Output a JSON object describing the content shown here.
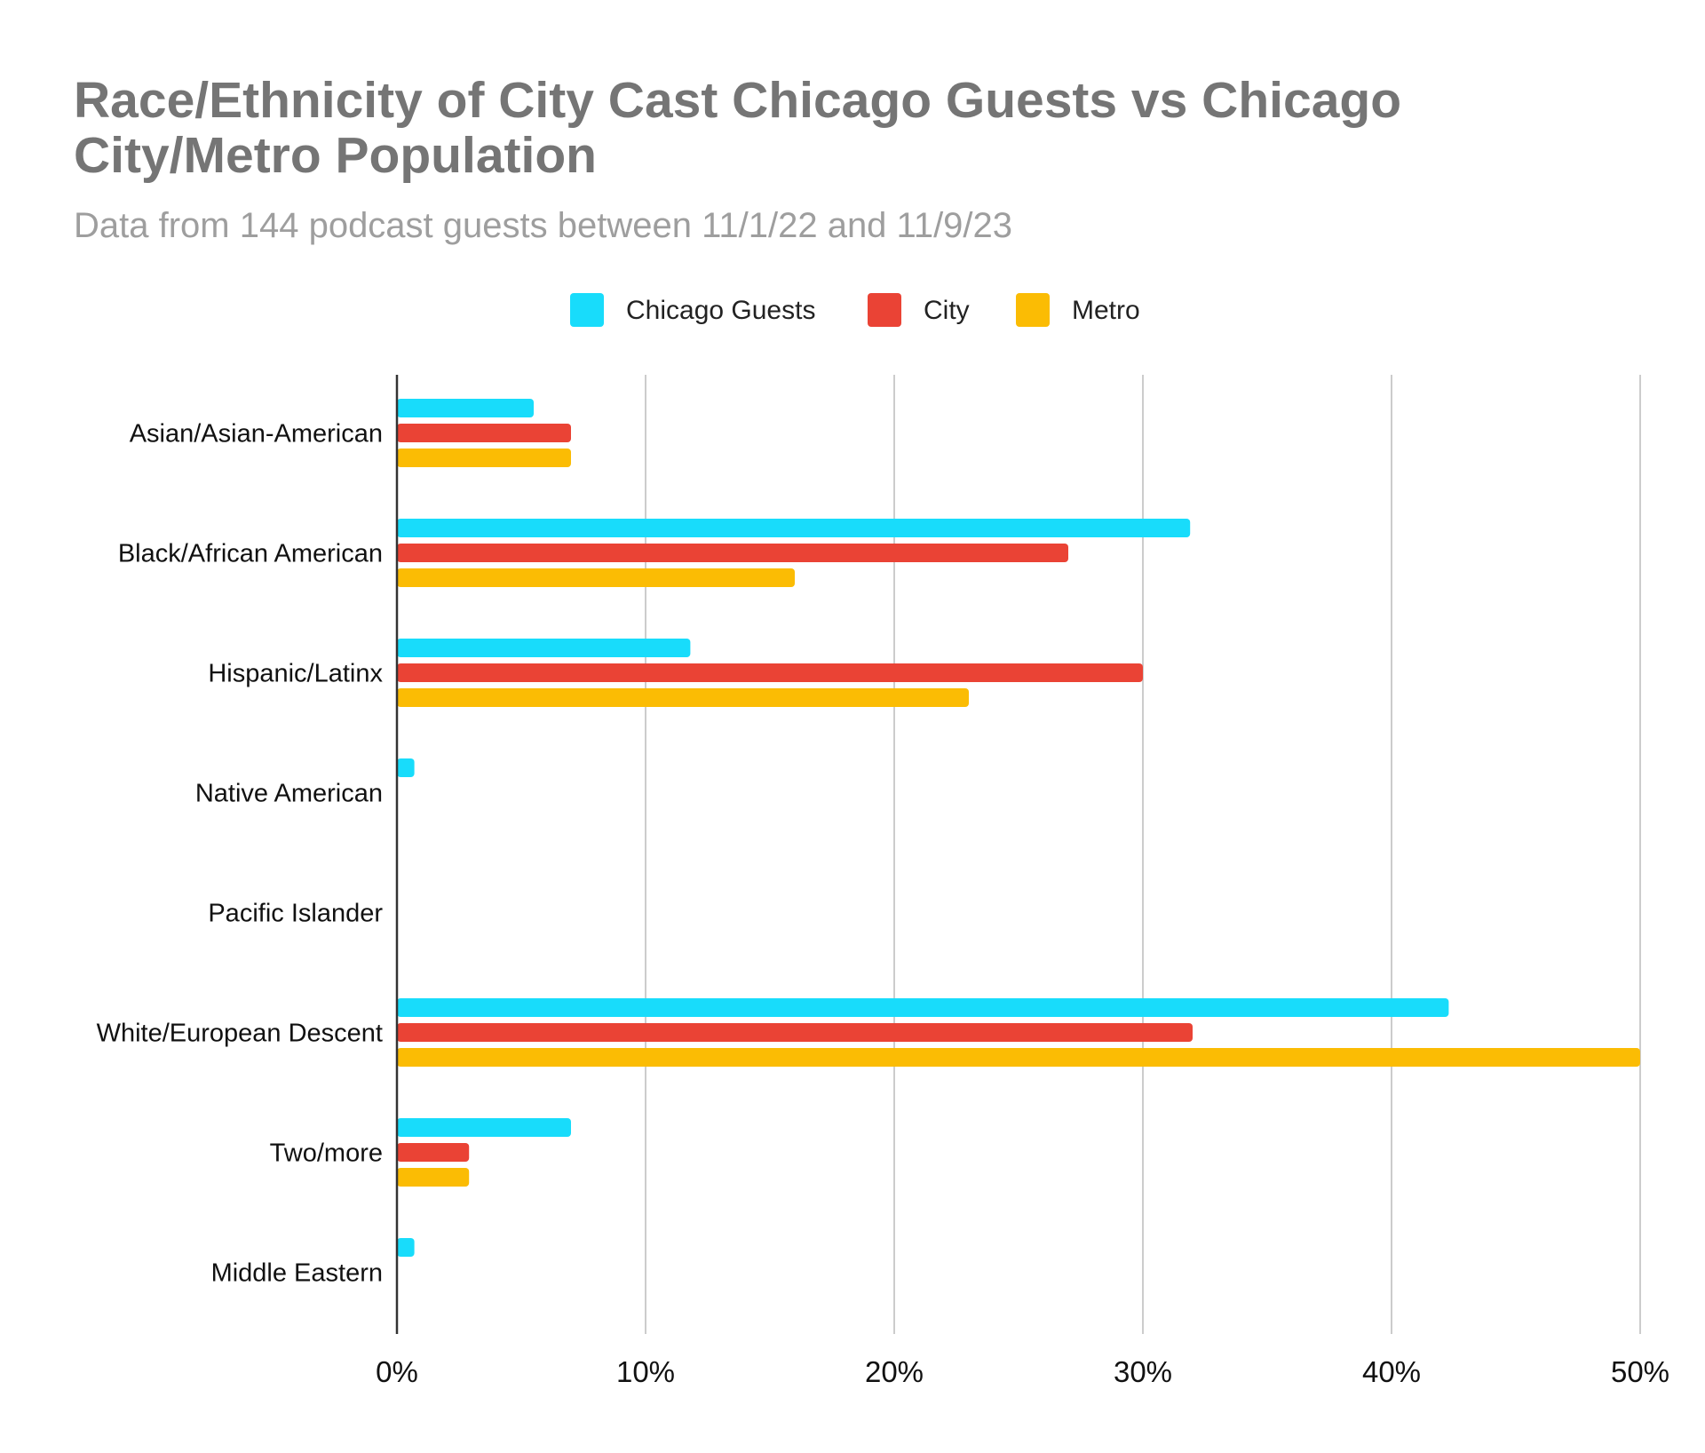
{
  "chart_data": {
    "type": "bar",
    "orientation": "horizontal",
    "title_lines": [
      "Race/Ethnicity of City Cast Chicago Guests vs Chicago",
      "City/Metro Population"
    ],
    "subtitle": "Data from 144 podcast guests between 11/1/22 and 11/9/23",
    "categories": [
      "Asian/Asian-American",
      "Black/African American",
      "Hispanic/Latinx",
      "Native American",
      "Pacific Islander",
      "White/European Descent",
      "Two/more",
      "Middle Eastern"
    ],
    "series": [
      {
        "name": "Chicago Guests",
        "color": "#18dcfb",
        "values": [
          5.5,
          31.9,
          11.8,
          0.7,
          0,
          42.3,
          7.0,
          0.7
        ]
      },
      {
        "name": "City",
        "color": "#ea4335",
        "values": [
          7.0,
          27.0,
          30.0,
          0,
          0,
          32.0,
          2.9,
          0
        ]
      },
      {
        "name": "Metro",
        "color": "#fbbc04",
        "values": [
          7.0,
          16.0,
          23.0,
          0,
          0,
          50.0,
          2.9,
          0
        ]
      }
    ],
    "xlim": [
      0,
      50
    ],
    "x_ticks": [
      "0%",
      "10%",
      "20%",
      "30%",
      "40%",
      "50%"
    ],
    "x_tick_values": [
      0,
      10,
      20,
      30,
      40,
      50
    ],
    "unit": "%",
    "grid": true,
    "legend_position": "top"
  }
}
